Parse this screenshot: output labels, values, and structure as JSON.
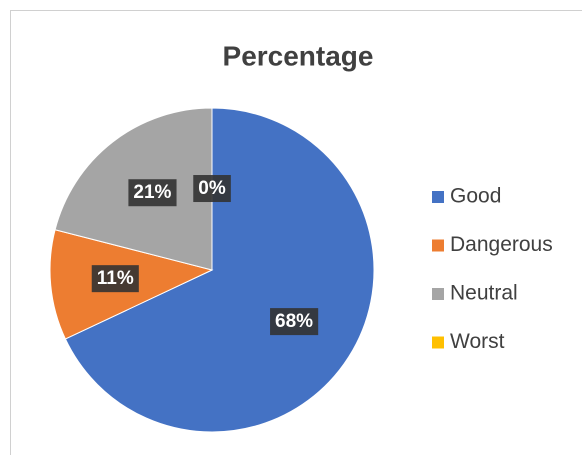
{
  "chart_data": {
    "type": "pie",
    "title": "Percentage",
    "categories": [
      "Good",
      "Dangerous",
      "Neutral",
      "Worst"
    ],
    "values": [
      68,
      11,
      21,
      0
    ],
    "value_labels": [
      "68%",
      "11%",
      "21%",
      "0%"
    ],
    "colors": [
      "#4472c4",
      "#ed7d31",
      "#a5a5a5",
      "#ffc000"
    ],
    "legend": "right"
  }
}
